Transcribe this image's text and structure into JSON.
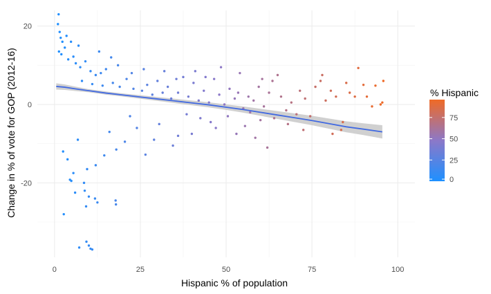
{
  "chart_data": {
    "type": "scatter",
    "title": "",
    "xlabel": "Hispanic % of population",
    "ylabel": "Change in % of vote for GOP (2012-16)",
    "xlim": [
      -5,
      105
    ],
    "ylim": [
      -39,
      24
    ],
    "x_ticks": [
      0,
      25,
      50,
      75,
      100
    ],
    "y_ticks": [
      -20,
      0,
      20
    ],
    "grid": true,
    "legend": {
      "title": "% Hispanic",
      "placement": "right",
      "ticks": [
        0,
        25,
        50,
        75
      ],
      "range": [
        0,
        96
      ],
      "color_low": "#1e90ff",
      "color_high": "#ef6a26"
    },
    "trend": {
      "name": "loess fit",
      "color": "#4169e1",
      "band_color": "#c8c8c8",
      "points": [
        [
          0.5,
          4.6
        ],
        [
          3,
          4.4
        ],
        [
          6,
          4.0
        ],
        [
          10,
          3.5
        ],
        [
          15,
          2.9
        ],
        [
          20,
          2.4
        ],
        [
          25,
          1.9
        ],
        [
          30,
          1.4
        ],
        [
          35,
          0.9
        ],
        [
          40,
          0.4
        ],
        [
          45,
          -0.1
        ],
        [
          50,
          -0.7
        ],
        [
          55,
          -1.3
        ],
        [
          60,
          -2.0
        ],
        [
          65,
          -2.7
        ],
        [
          70,
          -3.4
        ],
        [
          75,
          -4.1
        ],
        [
          80,
          -4.9
        ],
        [
          85,
          -5.7
        ],
        [
          90,
          -6.3
        ],
        [
          95.5,
          -7.0
        ]
      ],
      "band": [
        [
          0.5,
          0.8
        ],
        [
          10,
          0.4
        ],
        [
          20,
          0.4
        ],
        [
          30,
          0.5
        ],
        [
          40,
          0.6
        ],
        [
          50,
          0.7
        ],
        [
          60,
          0.9
        ],
        [
          70,
          1.1
        ],
        [
          80,
          1.3
        ],
        [
          90,
          1.5
        ],
        [
          95.5,
          1.7
        ]
      ]
    },
    "points": [
      [
        1.2,
        23.0
      ],
      [
        1.0,
        20.5
      ],
      [
        1.5,
        18.5
      ],
      [
        1.8,
        17.0
      ],
      [
        2.3,
        16.0
      ],
      [
        3.0,
        14.5
      ],
      [
        1.3,
        13.5
      ],
      [
        2.0,
        12.8
      ],
      [
        4.0,
        11.5
      ],
      [
        5.5,
        12.2
      ],
      [
        6.2,
        10.5
      ],
      [
        7.5,
        9.5
      ],
      [
        9.0,
        11.0
      ],
      [
        10.5,
        8.5
      ],
      [
        12.0,
        7.5
      ],
      [
        13.5,
        8.0
      ],
      [
        15.0,
        9.0
      ],
      [
        8.0,
        6.0
      ],
      [
        11.0,
        5.2
      ],
      [
        14.0,
        4.8
      ],
      [
        17.0,
        5.5
      ],
      [
        19.0,
        4.5
      ],
      [
        21.0,
        6.5
      ],
      [
        23.0,
        4.0
      ],
      [
        25.5,
        3.5
      ],
      [
        27.0,
        5.0
      ],
      [
        28.5,
        2.5
      ],
      [
        30.0,
        6.0
      ],
      [
        31.5,
        3.0
      ],
      [
        33.0,
        4.5
      ],
      [
        34.0,
        1.5
      ],
      [
        36.0,
        3.0
      ],
      [
        37.5,
        7.0
      ],
      [
        39.0,
        2.0
      ],
      [
        40.5,
        5.5
      ],
      [
        42.0,
        1.0
      ],
      [
        43.5,
        3.5
      ],
      [
        45.0,
        0.5
      ],
      [
        46.5,
        6.5
      ],
      [
        48.0,
        2.5
      ],
      [
        49.5,
        0.0
      ],
      [
        51.0,
        4.0
      ],
      [
        52.5,
        1.5
      ],
      [
        53.5,
        3.0
      ],
      [
        55.0,
        -1.0
      ],
      [
        56.5,
        2.0
      ],
      [
        58.0,
        1.0
      ],
      [
        59.5,
        4.5
      ],
      [
        61.0,
        -0.5
      ],
      [
        62.5,
        3.0
      ],
      [
        63.5,
        6.0
      ],
      [
        65.0,
        7.5
      ],
      [
        66.0,
        2.0
      ],
      [
        67.5,
        -1.5
      ],
      [
        69.0,
        0.5
      ],
      [
        70.5,
        -2.5
      ],
      [
        71.5,
        3.5
      ],
      [
        73.0,
        1.5
      ],
      [
        74.5,
        -3.0
      ],
      [
        76.0,
        4.5
      ],
      [
        77.5,
        6.0
      ],
      [
        79.0,
        1.0
      ],
      [
        80.5,
        3.5
      ],
      [
        82.0,
        2.0
      ],
      [
        83.5,
        -6.5
      ],
      [
        85.0,
        5.5
      ],
      [
        86.0,
        3.0
      ],
      [
        87.5,
        2.0
      ],
      [
        88.5,
        9.3
      ],
      [
        90.0,
        5.0
      ],
      [
        91.0,
        2.0
      ],
      [
        92.5,
        -0.5
      ],
      [
        93.5,
        4.8
      ],
      [
        95.0,
        0.0
      ],
      [
        95.8,
        6.0
      ],
      [
        95.5,
        0.5
      ],
      [
        78.0,
        7.5
      ],
      [
        84.0,
        -4.5
      ],
      [
        81.0,
        -7.5
      ],
      [
        62.0,
        -11.0
      ],
      [
        36.0,
        -8.0
      ],
      [
        29.0,
        -9.0
      ],
      [
        34.5,
        -10.5
      ],
      [
        40.0,
        -7.5
      ],
      [
        42.5,
        -3.5
      ],
      [
        20.5,
        -9.5
      ],
      [
        26.5,
        -12.8
      ],
      [
        18.0,
        -11.5
      ],
      [
        14.5,
        -13.0
      ],
      [
        12.0,
        -15.5
      ],
      [
        9.5,
        -16.5
      ],
      [
        5.5,
        -17.5
      ],
      [
        4.5,
        -19.2
      ],
      [
        4.9,
        -19.5
      ],
      [
        8.6,
        -20.0
      ],
      [
        8.8,
        -22.0
      ],
      [
        10.0,
        -23.5
      ],
      [
        11.8,
        -24.0
      ],
      [
        12.5,
        -25.0
      ],
      [
        17.8,
        -24.5
      ],
      [
        17.9,
        -25.5
      ],
      [
        9.2,
        -26.0
      ],
      [
        2.7,
        -28.0
      ],
      [
        7.2,
        -36.5
      ],
      [
        9.3,
        -35.0
      ],
      [
        10.0,
        -36.0
      ],
      [
        10.5,
        -36.8
      ],
      [
        11.0,
        -37.0
      ],
      [
        6.0,
        -22.5
      ],
      [
        3.8,
        -14.0
      ],
      [
        2.5,
        -12.0
      ],
      [
        6.8,
        -9.0
      ],
      [
        45.5,
        -4.5
      ],
      [
        50.5,
        -3.0
      ],
      [
        55.5,
        -5.5
      ],
      [
        57.0,
        -2.0
      ],
      [
        60.0,
        -4.0
      ],
      [
        64.0,
        -3.5
      ],
      [
        68.0,
        -5.0
      ],
      [
        72.5,
        -6.5
      ],
      [
        24.0,
        -6.0
      ],
      [
        22.0,
        -3.0
      ],
      [
        16.0,
        -7.0
      ],
      [
        30.5,
        -5.0
      ],
      [
        38.5,
        -2.5
      ],
      [
        47.0,
        -6.0
      ],
      [
        53.0,
        -7.5
      ],
      [
        58.5,
        -8.5
      ],
      [
        32.0,
        8.5
      ],
      [
        26.0,
        9.0
      ],
      [
        22.5,
        8.0
      ],
      [
        18.5,
        10.0
      ],
      [
        16.5,
        12.0
      ],
      [
        13.0,
        13.5
      ],
      [
        7.0,
        15.0
      ],
      [
        4.8,
        16.0
      ],
      [
        3.5,
        17.5
      ],
      [
        41.0,
        8.5
      ],
      [
        48.5,
        9.5
      ],
      [
        54.0,
        8.0
      ],
      [
        44.0,
        7.0
      ],
      [
        35.5,
        6.5
      ],
      [
        60.5,
        6.5
      ]
    ]
  }
}
